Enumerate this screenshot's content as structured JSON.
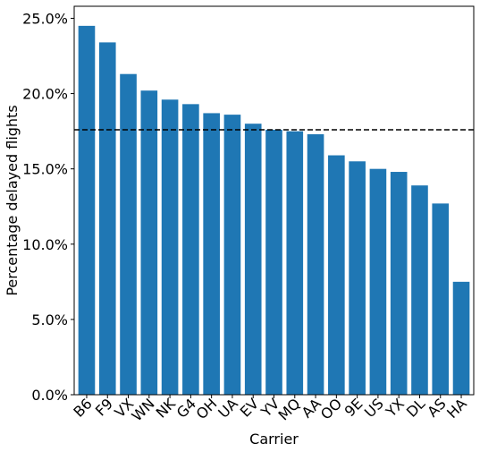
{
  "chart_data": {
    "type": "bar",
    "title": "",
    "xlabel": "Carrier",
    "ylabel": "Percentage delayed flights",
    "categories": [
      "B6",
      "F9",
      "VX",
      "WN",
      "NK",
      "G4",
      "OH",
      "UA",
      "EV",
      "YV",
      "MQ",
      "AA",
      "OO",
      "9E",
      "US",
      "YX",
      "DL",
      "AS",
      "HA"
    ],
    "values": [
      24.5,
      23.4,
      21.3,
      20.2,
      19.6,
      19.3,
      18.7,
      18.6,
      18.0,
      17.6,
      17.5,
      17.3,
      15.9,
      15.5,
      15.0,
      14.8,
      13.9,
      12.7,
      7.5
    ],
    "reference_line": {
      "value": 17.6,
      "style": "dashed",
      "color": "#000000"
    },
    "ylim": [
      0,
      25.8
    ],
    "yticks": [
      0,
      5,
      10,
      15,
      20,
      25
    ],
    "ytick_labels": [
      "0.0%",
      "5.0%",
      "10.0%",
      "15.0%",
      "20.0%",
      "25.0%"
    ],
    "bar_color": "#1f77b4",
    "grid": false
  }
}
